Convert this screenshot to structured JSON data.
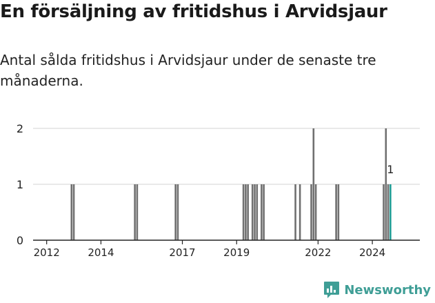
{
  "header": {
    "title": "En försäljning av fritidshus i Arvidsjaur",
    "subtitle": "Antal sålda fritidshus i Arvidsjaur under de senaste tre månaderna."
  },
  "brand": {
    "name": "Newsworthy",
    "icon": "newsworthy-logo-icon",
    "color": "#3f9e96"
  },
  "colors": {
    "bar": "#707070",
    "highlight": "#1f9d95",
    "grid": "#dcdcdc",
    "axis": "#222222"
  },
  "chart_data": {
    "type": "bar",
    "title": "En försäljning av fritidshus i Arvidsjaur",
    "subtitle": "Antal sålda fritidshus i Arvidsjaur under de senaste tre månaderna.",
    "xlabel": "",
    "ylabel": "",
    "ylim": [
      0,
      2
    ],
    "yticks": [
      0,
      1,
      2
    ],
    "xticks": [
      "2012",
      "2014",
      "2017",
      "2019",
      "2022",
      "2024"
    ],
    "x_tick_dates": [
      "2012-01",
      "2014-01",
      "2017-01",
      "2019-01",
      "2022-01",
      "2024-01"
    ],
    "x_range": [
      "2011-07",
      "2025-10"
    ],
    "grid": true,
    "bars": [
      {
        "x": "2012-12",
        "value": 1
      },
      {
        "x": "2013-01",
        "value": 1
      },
      {
        "x": "2015-04",
        "value": 1
      },
      {
        "x": "2015-05",
        "value": 1
      },
      {
        "x": "2016-10",
        "value": 1
      },
      {
        "x": "2016-11",
        "value": 1
      },
      {
        "x": "2019-04",
        "value": 1
      },
      {
        "x": "2019-05",
        "value": 1
      },
      {
        "x": "2019-06",
        "value": 1
      },
      {
        "x": "2019-08",
        "value": 1
      },
      {
        "x": "2019-09",
        "value": 1
      },
      {
        "x": "2019-10",
        "value": 1
      },
      {
        "x": "2019-12",
        "value": 1
      },
      {
        "x": "2020-01",
        "value": 1
      },
      {
        "x": "2021-03",
        "value": 1
      },
      {
        "x": "2021-05",
        "value": 1
      },
      {
        "x": "2021-10",
        "value": 1
      },
      {
        "x": "2021-11",
        "value": 2
      },
      {
        "x": "2021-12",
        "value": 1
      },
      {
        "x": "2022-09",
        "value": 1
      },
      {
        "x": "2022-10",
        "value": 1
      },
      {
        "x": "2024-06",
        "value": 1
      },
      {
        "x": "2024-07",
        "value": 2
      },
      {
        "x": "2024-08",
        "value": 1
      },
      {
        "x": "2024-09",
        "value": 1,
        "highlight": true,
        "label": "1"
      }
    ]
  }
}
